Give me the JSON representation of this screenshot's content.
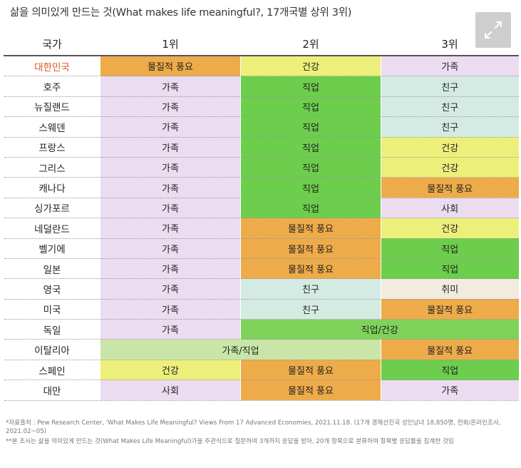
{
  "title": "삶을 의미있게 만드는 것(What makes life meaningful?, 17개국별 상위 3위)",
  "header": {
    "country": "국가",
    "rank1": "1위",
    "rank2": "2위",
    "rank3": "3위"
  },
  "colors": {
    "family": "#ecdcf0",
    "job": "#6dcd4c",
    "friend": "#d4ebe3",
    "health": "#ecf07a",
    "material": "#eeab4a",
    "society": "#ecdcf0",
    "hobby": "#f3ebe0",
    "highlight": "#e0541a"
  },
  "rows": [
    {
      "country": "대한민국",
      "highlight": true,
      "cells": [
        {
          "text": "물질적 풍요",
          "cls": "c-material",
          "span": 1
        },
        {
          "text": "건강",
          "cls": "c-health",
          "span": 1
        },
        {
          "text": "가족",
          "cls": "c-family",
          "span": 1
        }
      ]
    },
    {
      "country": "호주",
      "cells": [
        {
          "text": "가족",
          "cls": "c-family",
          "span": 1
        },
        {
          "text": "직업",
          "cls": "c-job",
          "span": 1
        },
        {
          "text": "친구",
          "cls": "c-friend",
          "span": 1
        }
      ]
    },
    {
      "country": "뉴질랜드",
      "cells": [
        {
          "text": "가족",
          "cls": "c-family",
          "span": 1
        },
        {
          "text": "직업",
          "cls": "c-job",
          "span": 1
        },
        {
          "text": "친구",
          "cls": "c-friend",
          "span": 1
        }
      ]
    },
    {
      "country": "스웨덴",
      "cells": [
        {
          "text": "가족",
          "cls": "c-family",
          "span": 1
        },
        {
          "text": "직업",
          "cls": "c-job",
          "span": 1
        },
        {
          "text": "친구",
          "cls": "c-friend",
          "span": 1
        }
      ]
    },
    {
      "country": "프랑스",
      "cells": [
        {
          "text": "가족",
          "cls": "c-family",
          "span": 1
        },
        {
          "text": "직업",
          "cls": "c-job",
          "span": 1
        },
        {
          "text": "건강",
          "cls": "c-health",
          "span": 1
        }
      ]
    },
    {
      "country": "그리스",
      "cells": [
        {
          "text": "가족",
          "cls": "c-family",
          "span": 1
        },
        {
          "text": "직업",
          "cls": "c-job",
          "span": 1
        },
        {
          "text": "건강",
          "cls": "c-health",
          "span": 1
        }
      ]
    },
    {
      "country": "캐나다",
      "cells": [
        {
          "text": "가족",
          "cls": "c-family",
          "span": 1
        },
        {
          "text": "직업",
          "cls": "c-job",
          "span": 1
        },
        {
          "text": "물질적 풍요",
          "cls": "c-material",
          "span": 1
        }
      ]
    },
    {
      "country": "싱가포르",
      "cells": [
        {
          "text": "가족",
          "cls": "c-family",
          "span": 1
        },
        {
          "text": "직업",
          "cls": "c-job",
          "span": 1
        },
        {
          "text": "사회",
          "cls": "c-society",
          "span": 1
        }
      ]
    },
    {
      "country": "네덜란드",
      "cells": [
        {
          "text": "가족",
          "cls": "c-family",
          "span": 1
        },
        {
          "text": "물질적 풍요",
          "cls": "c-material",
          "span": 1
        },
        {
          "text": "건강",
          "cls": "c-health",
          "span": 1
        }
      ]
    },
    {
      "country": "벨기에",
      "cells": [
        {
          "text": "가족",
          "cls": "c-family",
          "span": 1
        },
        {
          "text": "물질적 풍요",
          "cls": "c-material",
          "span": 1
        },
        {
          "text": "직업",
          "cls": "c-job",
          "span": 1
        }
      ]
    },
    {
      "country": "일본",
      "cells": [
        {
          "text": "가족",
          "cls": "c-family",
          "span": 1
        },
        {
          "text": "물질적 풍요",
          "cls": "c-material",
          "span": 1
        },
        {
          "text": "직업",
          "cls": "c-job",
          "span": 1
        }
      ]
    },
    {
      "country": "영국",
      "cells": [
        {
          "text": "가족",
          "cls": "c-family",
          "span": 1
        },
        {
          "text": "친구",
          "cls": "c-friend",
          "span": 1
        },
        {
          "text": "취미",
          "cls": "c-hobby",
          "span": 1
        }
      ]
    },
    {
      "country": "미국",
      "cells": [
        {
          "text": "가족",
          "cls": "c-family",
          "span": 1
        },
        {
          "text": "친구",
          "cls": "c-friend",
          "span": 1
        },
        {
          "text": "물질적 풍요",
          "cls": "c-material",
          "span": 1
        }
      ]
    },
    {
      "country": "독일",
      "cells": [
        {
          "text": "가족",
          "cls": "c-family",
          "span": 1
        },
        {
          "text": "직업/건강",
          "cls": "c-combo-jh",
          "span": 2
        }
      ]
    },
    {
      "country": "이탈리아",
      "cells": [
        {
          "text": "가족/직업",
          "cls": "c-combo-fj",
          "span": 2
        },
        {
          "text": "물질적 풍요",
          "cls": "c-material",
          "span": 1
        }
      ]
    },
    {
      "country": "스페인",
      "cells": [
        {
          "text": "건강",
          "cls": "c-health",
          "span": 1
        },
        {
          "text": "물질적 풍요",
          "cls": "c-material",
          "span": 1
        },
        {
          "text": "직업",
          "cls": "c-job",
          "span": 1
        }
      ]
    },
    {
      "country": "대만",
      "cells": [
        {
          "text": "사회",
          "cls": "c-society",
          "span": 1
        },
        {
          "text": "물질적 풍요",
          "cls": "c-material",
          "span": 1
        },
        {
          "text": "가족",
          "cls": "c-family",
          "span": 1
        }
      ]
    }
  ],
  "footnotes": {
    "source": "*자료출처 : Pew Research Center, 'What Makes Life Meaningful? Views From 17 Advanced Economies, 2021.11.18. (17개 경제선진국 성인남녀 18,850명, 전화/온라인조사, 2021.02~05)",
    "method": "**본 조사는 삶을 의미있게 만드는 것(What Makes Life Meaningful)가을 주관식으로 질문하여 3개까지 응답을 받아, 20개 항목으로 분류하여 항목별 응답률을 집계한 것임"
  },
  "icons": {
    "expand": "expand-icon"
  }
}
